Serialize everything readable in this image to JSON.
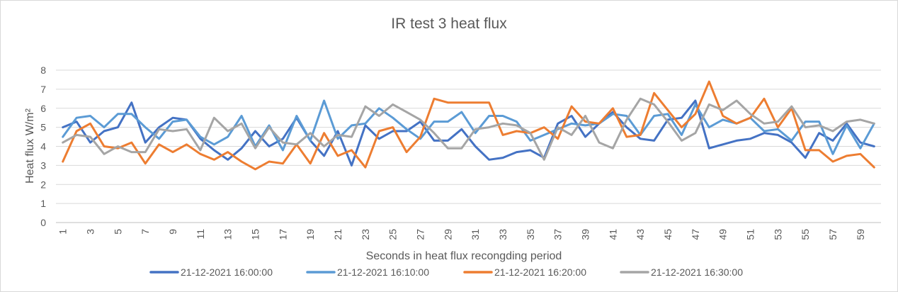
{
  "chart_data": {
    "type": "line",
    "title": "IR test 3 heat flux",
    "xlabel": "Seconds in heat flux recongding period",
    "ylabel": "Heat flux W/m²",
    "ylim": [
      0,
      8
    ],
    "yticks": [
      0,
      1,
      2,
      3,
      4,
      5,
      6,
      7,
      8
    ],
    "x": [
      1,
      2,
      3,
      4,
      5,
      6,
      7,
      8,
      9,
      10,
      11,
      12,
      13,
      14,
      15,
      16,
      17,
      18,
      19,
      20,
      21,
      22,
      23,
      24,
      25,
      26,
      27,
      28,
      29,
      30,
      31,
      32,
      33,
      34,
      35,
      36,
      37,
      38,
      39,
      40,
      41,
      42,
      43,
      44,
      45,
      46,
      47,
      48,
      49,
      50,
      51,
      52,
      53,
      54,
      55,
      56,
      57,
      58,
      59,
      60
    ],
    "xticks": [
      "1",
      "3",
      "5",
      "7",
      "9",
      "11",
      "13",
      "15",
      "17",
      "19",
      "21",
      "23",
      "25",
      "27",
      "29",
      "31",
      "33",
      "35",
      "37",
      "39",
      "41",
      "43",
      "45",
      "47",
      "49",
      "51",
      "53",
      "55",
      "57",
      "59"
    ],
    "grid": "horizontal",
    "legend_position": "bottom",
    "series": [
      {
        "name": "21-12-2021 16:00:00",
        "color": "#4472c4",
        "values": [
          5.0,
          5.3,
          4.2,
          4.8,
          5.0,
          6.3,
          4.2,
          5.0,
          5.5,
          5.4,
          4.4,
          3.8,
          3.3,
          3.9,
          4.8,
          4.0,
          4.4,
          5.5,
          4.3,
          3.5,
          4.8,
          3.0,
          5.1,
          4.4,
          4.8,
          4.8,
          5.3,
          4.3,
          4.3,
          4.9,
          4.0,
          3.3,
          3.4,
          3.7,
          3.8,
          3.4,
          5.2,
          5.6,
          4.5,
          5.2,
          5.8,
          5.0,
          4.4,
          4.3,
          5.4,
          5.5,
          6.4,
          3.9,
          4.1,
          4.3,
          4.4,
          4.7,
          4.6,
          4.2,
          3.4,
          4.7,
          4.3,
          5.2,
          4.2,
          4.0
        ]
      },
      {
        "name": "21-12-2021 16:10:00",
        "color": "#5b9bd5",
        "values": [
          4.5,
          5.5,
          5.6,
          5.0,
          5.7,
          5.7,
          5.0,
          4.4,
          5.3,
          5.4,
          4.5,
          4.1,
          4.5,
          5.6,
          4.0,
          5.1,
          3.8,
          5.6,
          4.3,
          6.4,
          4.4,
          5.1,
          5.2,
          6.0,
          5.5,
          4.9,
          4.4,
          5.3,
          5.3,
          5.8,
          4.7,
          5.6,
          5.6,
          5.3,
          4.3,
          4.6,
          4.9,
          5.2,
          5.1,
          5.2,
          5.7,
          5.6,
          4.6,
          5.6,
          5.7,
          4.6,
          6.2,
          5.0,
          5.4,
          5.2,
          5.5,
          4.8,
          4.9,
          4.3,
          5.3,
          5.3,
          3.6,
          5.1,
          3.9,
          5.2
        ]
      },
      {
        "name": "21-12-2021 16:20:00",
        "color": "#ed7d31",
        "values": [
          3.2,
          4.8,
          5.2,
          4.0,
          3.9,
          4.2,
          3.1,
          4.1,
          3.7,
          4.1,
          3.6,
          3.3,
          3.7,
          3.2,
          2.8,
          3.2,
          3.1,
          4.1,
          3.1,
          4.7,
          3.5,
          3.8,
          2.9,
          4.8,
          5.0,
          3.7,
          4.5,
          6.5,
          6.3,
          6.3,
          6.3,
          6.3,
          4.6,
          4.8,
          4.7,
          5.0,
          4.4,
          6.1,
          5.3,
          5.2,
          6.0,
          4.5,
          4.6,
          6.8,
          5.9,
          5.0,
          5.7,
          7.4,
          5.6,
          5.2,
          5.5,
          6.5,
          5.0,
          6.0,
          3.8,
          3.8,
          3.2,
          3.5,
          3.6,
          2.9
        ]
      },
      {
        "name": "21-12-2021 16:30:00",
        "color": "#a5a5a5",
        "values": [
          4.2,
          4.6,
          4.5,
          3.6,
          4.0,
          3.7,
          3.7,
          4.9,
          4.8,
          4.9,
          3.8,
          5.5,
          4.8,
          5.2,
          3.9,
          5.0,
          4.2,
          4.1,
          4.7,
          4.0,
          4.6,
          4.5,
          6.1,
          5.6,
          6.2,
          5.8,
          5.4,
          4.7,
          3.9,
          3.9,
          4.9,
          5.0,
          5.2,
          5.1,
          4.7,
          3.3,
          5.0,
          4.6,
          5.6,
          4.2,
          3.9,
          5.4,
          6.5,
          6.2,
          5.3,
          4.3,
          4.7,
          6.2,
          5.9,
          6.4,
          5.7,
          5.2,
          5.3,
          6.1,
          5.0,
          5.1,
          4.8,
          5.3,
          5.4,
          5.2
        ]
      }
    ]
  }
}
